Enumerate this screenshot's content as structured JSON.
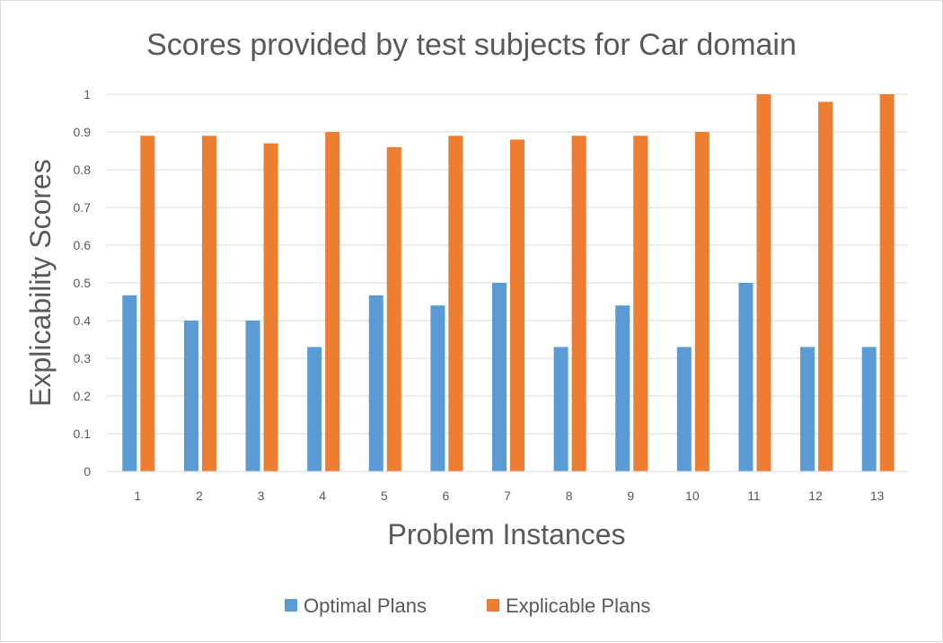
{
  "chart_data": {
    "type": "bar",
    "title": "Scores provided by test subjects for Car domain",
    "xlabel": "Problem Instances",
    "ylabel": "Explicability Scores",
    "categories": [
      "1",
      "2",
      "3",
      "4",
      "5",
      "6",
      "7",
      "8",
      "9",
      "10",
      "11",
      "12",
      "13"
    ],
    "ylim": [
      0,
      1
    ],
    "yticks": [
      "0",
      "0.1",
      "0.2",
      "0.3",
      "0.4",
      "0.5",
      "0.6",
      "0.7",
      "0.8",
      "0.9",
      "1"
    ],
    "grid": true,
    "legend": "bottom",
    "series": [
      {
        "name": "Optimal Plans",
        "color": "#5b9bd5",
        "values": [
          0.467,
          0.4,
          0.4,
          0.33,
          0.467,
          0.44,
          0.5,
          0.33,
          0.44,
          0.33,
          0.5,
          0.33,
          0.33
        ]
      },
      {
        "name": "Explicable Plans",
        "color": "#ed7d31",
        "values": [
          0.89,
          0.89,
          0.87,
          0.9,
          0.86,
          0.89,
          0.88,
          0.89,
          0.89,
          0.9,
          1.0,
          0.98,
          1.0
        ]
      }
    ]
  }
}
